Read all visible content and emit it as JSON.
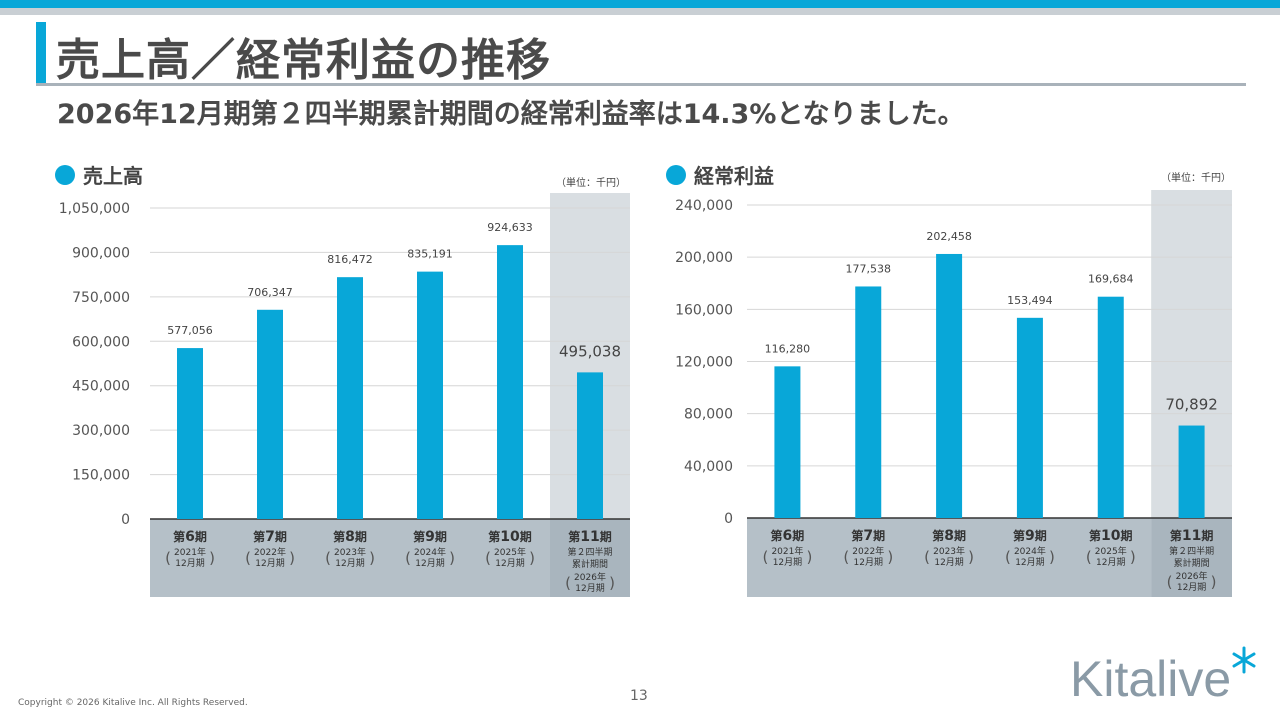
{
  "header": {
    "title": "売上高／経常利益の推移",
    "subtitle": "2026年12月期第２四半期累計期間の経常利益率は14.3%となりました。"
  },
  "colors": {
    "accent": "#08a7d8",
    "bar": "#08a7d8",
    "axis_band": "#b5c0c8",
    "highlight_band": "#d9dee2"
  },
  "chart_data": [
    {
      "type": "bar",
      "title": "売上高",
      "unit": "（単位：千円）",
      "categories": [
        "第6期",
        "第7期",
        "第8期",
        "第9期",
        "第10期",
        "第11期"
      ],
      "category_notes": [
        "2021年12月期",
        "2022年12月期",
        "2023年12月期",
        "2024年12月期",
        "2025年12月期",
        "第２四半期累計期間 2026年12月期"
      ],
      "values": [
        577056,
        706347,
        816472,
        835191,
        924633,
        495038
      ],
      "value_labels": [
        "577,056",
        "706,347",
        "816,472",
        "835,191",
        "924,633",
        "495,038"
      ],
      "ylim": [
        0,
        1050000
      ],
      "yticks": [
        0,
        150000,
        300000,
        450000,
        600000,
        750000,
        900000,
        1050000
      ],
      "ytick_labels": [
        "0",
        "150,000",
        "300,000",
        "450,000",
        "600,000",
        "750,000",
        "900,000",
        "1,050,000"
      ],
      "grid": true,
      "highlight_last": true
    },
    {
      "type": "bar",
      "title": "経常利益",
      "unit": "（単位：千円）",
      "categories": [
        "第6期",
        "第7期",
        "第8期",
        "第9期",
        "第10期",
        "第11期"
      ],
      "category_notes": [
        "2021年12月期",
        "2022年12月期",
        "2023年12月期",
        "2024年12月期",
        "2025年12月期",
        "第２四半期累計期間 2026年12月期"
      ],
      "values": [
        116280,
        177538,
        202458,
        153494,
        169684,
        70892
      ],
      "value_labels": [
        "116,280",
        "177,538",
        "202,458",
        "153,494",
        "169,684",
        "70,892"
      ],
      "ylim": [
        0,
        240000
      ],
      "yticks": [
        0,
        40000,
        80000,
        120000,
        160000,
        200000,
        240000
      ],
      "ytick_labels": [
        "0",
        "40,000",
        "80,000",
        "120,000",
        "160,000",
        "200,000",
        "240,000"
      ],
      "grid": true,
      "highlight_last": true
    }
  ],
  "axis_labels": {
    "period_prefix": "第",
    "period_suffix": "期",
    "periods": [
      "6",
      "7",
      "8",
      "9",
      "10",
      "11"
    ],
    "years": [
      "2021年",
      "2022年",
      "2023年",
      "2024年",
      "2025年",
      "2026年"
    ],
    "month_label": "12月期",
    "cumulative_line1": "第２四半期",
    "cumulative_line2": "累計期間"
  },
  "footer": {
    "copyright": "Copyright © 2026 Kitalive Inc. All Rights Reserved.",
    "page_number": "13",
    "logo_text": "Kitalive"
  }
}
